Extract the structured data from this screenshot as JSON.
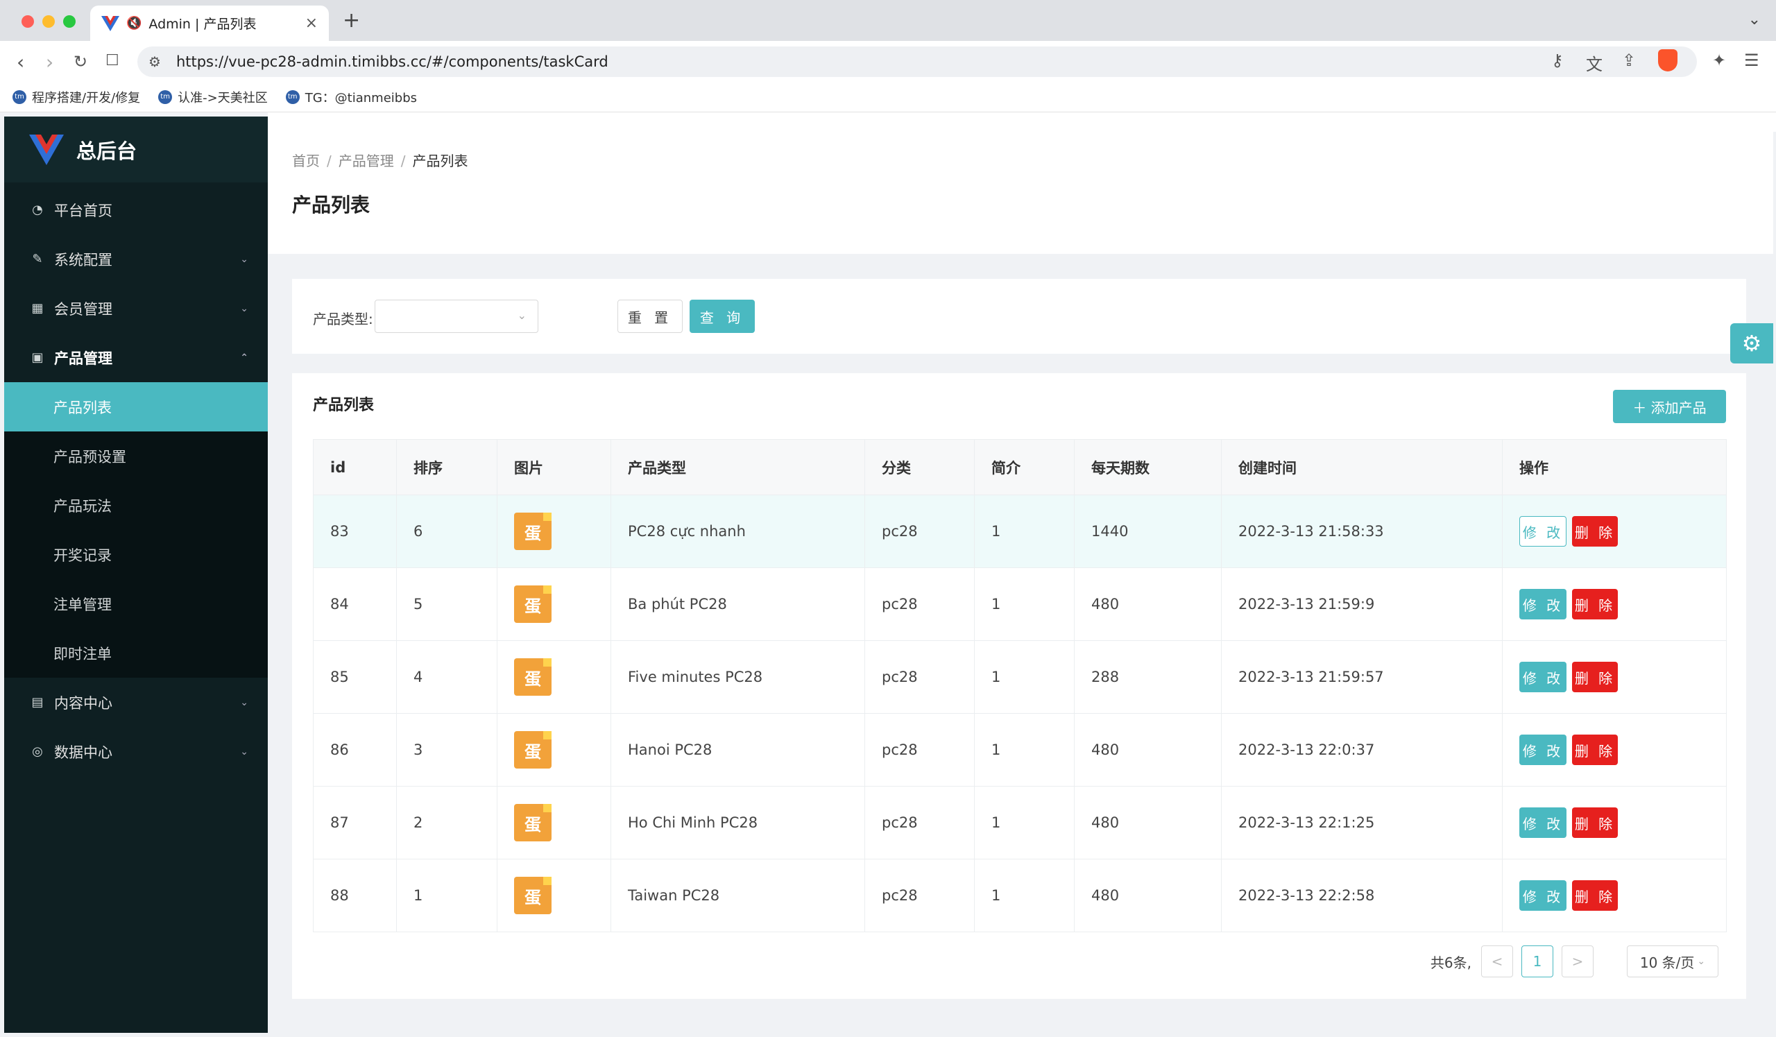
{
  "browser": {
    "tab_title": "Admin | 产品列表",
    "url": "https://vue-pc28-admin.timibbs.cc/#/components/taskCard",
    "bookmarks": [
      {
        "label": "程序搭建/开发/修复"
      },
      {
        "label": "认准->天美社区"
      },
      {
        "label": "TG：@tianmeibbs"
      }
    ]
  },
  "sidebar": {
    "logo_text": "总后台",
    "items": [
      {
        "label": "平台首页",
        "icon": "dashboard-icon",
        "has_arrow": false
      },
      {
        "label": "系统配置",
        "icon": "edit-icon",
        "has_arrow": true
      },
      {
        "label": "会员管理",
        "icon": "table-icon",
        "has_arrow": true
      },
      {
        "label": "产品管理",
        "icon": "grid-icon",
        "has_arrow": true,
        "open": true
      }
    ],
    "submenu": [
      {
        "label": "产品列表",
        "active": true
      },
      {
        "label": "产品预设置"
      },
      {
        "label": "产品玩法"
      },
      {
        "label": "开奖记录"
      },
      {
        "label": "注单管理"
      },
      {
        "label": "即时注单"
      }
    ],
    "items_after": [
      {
        "label": "内容中心",
        "icon": "document-icon"
      },
      {
        "label": "数据中心",
        "icon": "check-circle-icon"
      }
    ]
  },
  "breadcrumb": [
    "首页",
    "产品管理",
    "产品列表"
  ],
  "page_title": "产品列表",
  "search": {
    "type_label": "产品类型:",
    "reset_label": "重 置",
    "query_label": "查 询"
  },
  "list": {
    "title": "产品列表",
    "add_label": "添加产品",
    "columns": [
      "id",
      "排序",
      "图片",
      "产品类型",
      "分类",
      "简介",
      "每天期数",
      "创建时间",
      "操作"
    ],
    "rows": [
      {
        "id": "83",
        "sort": "6",
        "type": "PC28 cực nhanh",
        "category": "pc28",
        "intro": "1",
        "daily": "1440",
        "created": "2022-3-13 21:58:33"
      },
      {
        "id": "84",
        "sort": "5",
        "type": "Ba phút PC28",
        "category": "pc28",
        "intro": "1",
        "daily": "480",
        "created": "2022-3-13 21:59:9"
      },
      {
        "id": "85",
        "sort": "4",
        "type": "Five minutes PC28",
        "category": "pc28",
        "intro": "1",
        "daily": "288",
        "created": "2022-3-13 21:59:57"
      },
      {
        "id": "86",
        "sort": "3",
        "type": "Hanoi PC28",
        "category": "pc28",
        "intro": "1",
        "daily": "480",
        "created": "2022-3-13 22:0:37"
      },
      {
        "id": "87",
        "sort": "2",
        "type": "Ho Chi Minh PC28",
        "category": "pc28",
        "intro": "1",
        "daily": "480",
        "created": "2022-3-13 22:1:25"
      },
      {
        "id": "88",
        "sort": "1",
        "type": "Taiwan PC28",
        "category": "pc28",
        "intro": "1",
        "daily": "480",
        "created": "2022-3-13 22:2:58"
      }
    ],
    "edit_label": "修 改",
    "delete_label": "删 除",
    "thumb_char": "蛋"
  },
  "pagination": {
    "total": "共6条,",
    "prev": "<",
    "current": "1",
    "next": ">",
    "page_size": "10 条/页"
  },
  "colors": {
    "accent": "#4ab9c1",
    "danger": "#e6201e",
    "sidebar": "#0e1f22"
  }
}
